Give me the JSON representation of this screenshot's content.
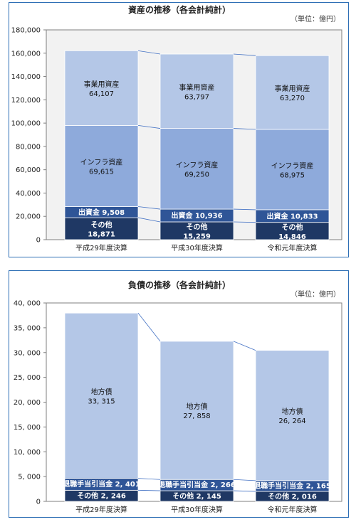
{
  "chart_data": [
    {
      "type": "bar",
      "stacked": true,
      "title": "資産の推移（各会計純計）",
      "unit_note": "（単位：億円）",
      "categories": [
        "平成29年度決算",
        "平成30年度決算",
        "令和元年度決算"
      ],
      "ylim": [
        0,
        180000
      ],
      "yticks": [
        0,
        20000,
        40000,
        60000,
        80000,
        100000,
        120000,
        140000,
        160000,
        180000
      ],
      "ytick_labels": [
        "0",
        "20,000",
        "40,000",
        "60,000",
        "80,000",
        "100,000",
        "120,000",
        "140,000",
        "160,000",
        "180,000"
      ],
      "series": [
        {
          "name": "その他",
          "values": [
            18871,
            15259,
            14846
          ],
          "labels": [
            "18,871",
            "15,259",
            "14,846"
          ],
          "color": "#1f3864",
          "label_color": "#ffffff",
          "label_style": "two-line"
        },
        {
          "name": "出資金",
          "values": [
            9508,
            10936,
            10833
          ],
          "labels": [
            "9,508",
            "10,936",
            "10,833"
          ],
          "color": "#2f5597",
          "label_color": "#ffffff",
          "label_style": "inline"
        },
        {
          "name": "インフラ資産",
          "values": [
            69615,
            69250,
            68975
          ],
          "labels": [
            "69,615",
            "69,250",
            "68,975"
          ],
          "color": "#8eaadb",
          "label_color": "#111111",
          "label_style": "two-line"
        },
        {
          "name": "事業用資産",
          "values": [
            64107,
            63797,
            63270
          ],
          "labels": [
            "64,107",
            "63,797",
            "63,270"
          ],
          "color": "#b4c7e7",
          "label_color": "#111111",
          "label_style": "two-line"
        }
      ],
      "grid": false,
      "plot_background": "#f2f2f2"
    },
    {
      "type": "bar",
      "stacked": true,
      "title": "負債の推移（各会計純計）",
      "unit_note": "（単位：億円）",
      "categories": [
        "平成29年度決算",
        "平成30年度決算",
        "令和元年度決算"
      ],
      "ylim": [
        0,
        40000
      ],
      "yticks": [
        0,
        5000,
        10000,
        15000,
        20000,
        25000,
        30000,
        35000,
        40000
      ],
      "ytick_labels": [
        "0",
        "5, 000",
        "10, 000",
        "15, 000",
        "20, 000",
        "25, 000",
        "30, 000",
        "35, 000",
        "40, 000"
      ],
      "series": [
        {
          "name": "その他",
          "values": [
            2246,
            2145,
            2016
          ],
          "labels": [
            "2, 246",
            "2, 145",
            "2, 016"
          ],
          "color": "#1f3864",
          "label_color": "#ffffff",
          "label_style": "inline"
        },
        {
          "name": "退職手当引当金",
          "values": [
            2401,
            2266,
            2165
          ],
          "labels": [
            "2, 401",
            "2, 266",
            "2, 165"
          ],
          "color": "#2f5597",
          "label_color": "#ffffff",
          "label_style": "inline-small"
        },
        {
          "name": "地方債",
          "values": [
            33315,
            27858,
            26264
          ],
          "labels": [
            "33, 315",
            "27, 858",
            "26, 264"
          ],
          "color": "#b4c7e7",
          "label_color": "#111111",
          "label_style": "two-line"
        }
      ],
      "grid": false,
      "plot_background": "#ffffff"
    }
  ]
}
